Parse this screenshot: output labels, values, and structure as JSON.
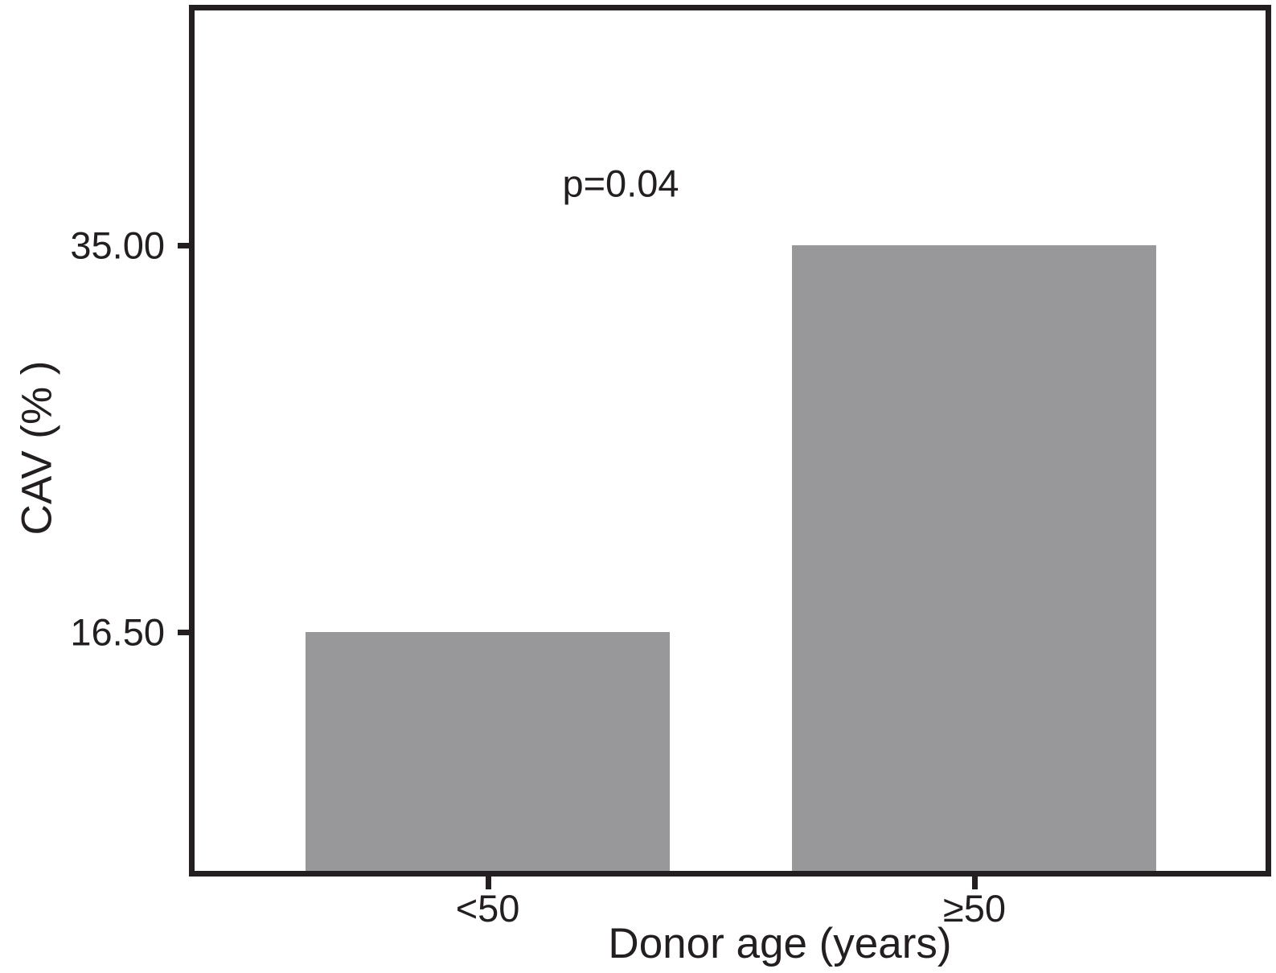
{
  "figure": {
    "background_color": "#ffffff",
    "text_color": "#231f20",
    "frame_color": "#231f20"
  },
  "chart_data": {
    "type": "bar",
    "title": "",
    "xlabel": "Donor age (years)",
    "ylabel": "CAV (% )",
    "categories": [
      "<50",
      "≥50"
    ],
    "values": [
      16.5,
      35.0
    ],
    "value_labels": [
      "16.50",
      "35.00"
    ],
    "annotation": "p=0.04",
    "yticks": [
      {
        "value": 35.0,
        "label": "35.00"
      },
      {
        "value": 16.5,
        "label": "16.50"
      }
    ],
    "ylim": [
      5.1,
      46.2
    ],
    "grid": false,
    "legend": "none",
    "bar_color": "#98989a",
    "axis_color": "#231f20"
  }
}
